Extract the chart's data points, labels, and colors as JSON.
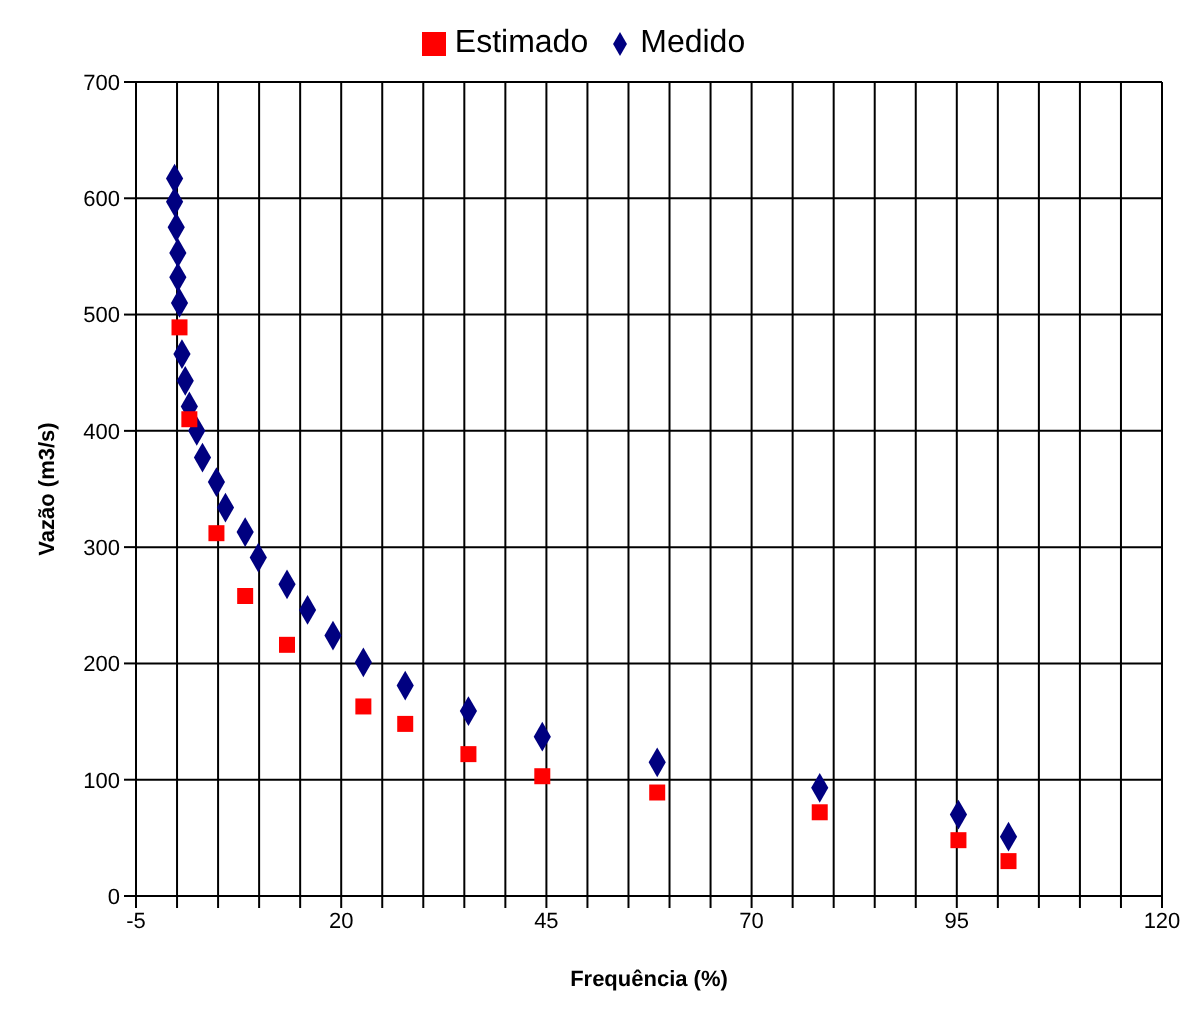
{
  "chart_data": {
    "type": "scatter",
    "xlabel": "Frequência (%)",
    "ylabel": "Vazão (m3/s)",
    "xlim": [
      -5,
      120
    ],
    "ylim": [
      0,
      700
    ],
    "xticks": [
      -5,
      {
        "value": 0,
        "label": null
      },
      {
        "value": 5,
        "label": null
      },
      {
        "value": 10,
        "label": null
      },
      {
        "value": 15,
        "label": null
      },
      20,
      {
        "value": 25,
        "label": null
      },
      {
        "value": 30,
        "label": null
      },
      {
        "value": 35,
        "label": null
      },
      {
        "value": 40,
        "label": null
      },
      45,
      {
        "value": 50,
        "label": null
      },
      {
        "value": 55,
        "label": null
      },
      {
        "value": 60,
        "label": null
      },
      {
        "value": 65,
        "label": null
      },
      70,
      {
        "value": 75,
        "label": null
      },
      {
        "value": 80,
        "label": null
      },
      {
        "value": 85,
        "label": null
      },
      {
        "value": 90,
        "label": null
      },
      95,
      {
        "value": 100,
        "label": null
      },
      {
        "value": 105,
        "label": null
      },
      {
        "value": 110,
        "label": null
      },
      {
        "value": 115,
        "label": null
      },
      120
    ],
    "yticks": [
      0,
      100,
      200,
      300,
      400,
      500,
      600,
      700
    ],
    "grid": true,
    "legend": "top",
    "series": [
      {
        "name": "Medido",
        "color": "#000080",
        "marker": "diamond",
        "x": [
          -0.3,
          -0.3,
          -0.1,
          0.1,
          0.1,
          0.3,
          0.6,
          1.0,
          1.5,
          2.4,
          3.1,
          4.8,
          5.9,
          8.3,
          9.9,
          13.4,
          15.9,
          19.0,
          22.7,
          27.8,
          35.5,
          44.5,
          58.5,
          78.3,
          95.2,
          101.3
        ],
        "values": [
          617,
          597,
          575,
          553,
          532,
          510,
          466,
          443,
          421,
          400,
          377,
          356,
          334,
          313,
          291,
          268,
          246,
          224,
          201,
          181,
          159,
          137,
          115,
          93,
          70,
          51
        ]
      },
      {
        "name": "Estimado",
        "color": "#ff0000",
        "marker": "square",
        "x": [
          0.3,
          1.5,
          4.8,
          8.3,
          13.4,
          22.7,
          27.8,
          35.5,
          44.5,
          58.5,
          78.3,
          95.2,
          101.3
        ],
        "values": [
          489,
          410,
          312,
          258,
          216,
          163,
          148,
          122,
          103,
          89,
          72,
          48,
          30
        ]
      }
    ]
  }
}
